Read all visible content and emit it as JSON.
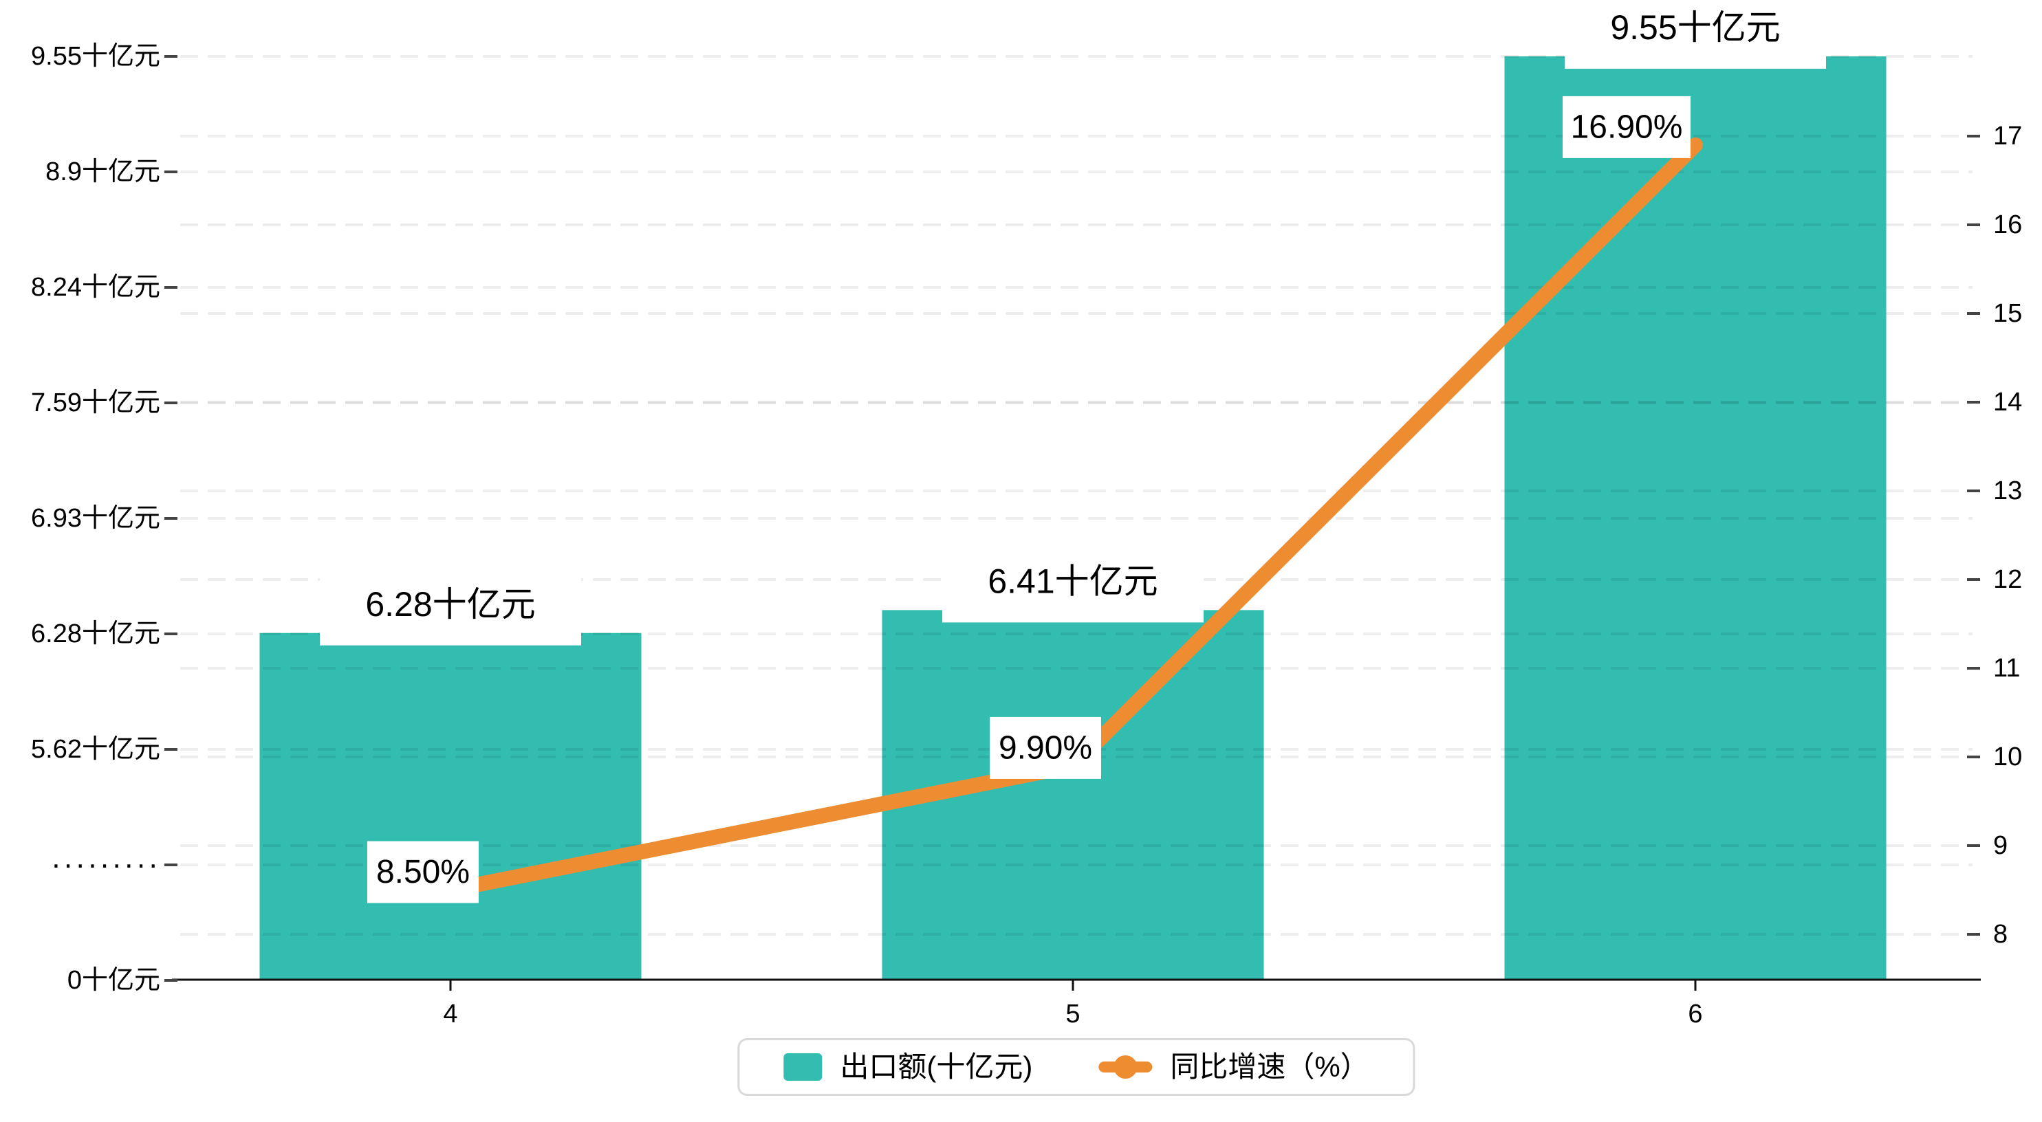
{
  "legend": {
    "items": [
      {
        "label": "出口额(十亿元)",
        "marker": "bar-swatch",
        "color": "#32bdb0"
      },
      {
        "label": "同比增速（%）",
        "marker": "line-dot-swatch",
        "color": "#ee8c31"
      }
    ]
  },
  "chart_data": {
    "type": "bar",
    "subtype": "dual-axis bar + line",
    "categories": [
      "4",
      "5",
      "6"
    ],
    "series": [
      {
        "name": "出口额(十亿元)",
        "type": "bar",
        "axis": "left",
        "values": [
          6.28,
          6.41,
          9.55
        ],
        "data_labels": [
          "6.28十亿元",
          "6.41十亿元",
          "9.55十亿元"
        ],
        "color": "#32bdb0"
      },
      {
        "name": "同比增速（%）",
        "type": "line",
        "axis": "right",
        "values": [
          8.5,
          9.9,
          16.9
        ],
        "data_labels": [
          "8.50%",
          "9.90%",
          "16.90%"
        ],
        "color": "#ee8c31"
      }
    ],
    "left_axis": {
      "title": "",
      "broken_axis": true,
      "tick_labels_top_to_bottom": [
        "9.55十亿元",
        "8.9十亿元",
        "8.24十亿元",
        "7.59十亿元",
        "6.93十亿元",
        "6.28十亿元",
        "5.62十亿元",
        "·········",
        "0十亿元"
      ],
      "tick_values_top_to_bottom": [
        9.55,
        8.9,
        8.24,
        7.59,
        6.93,
        6.28,
        5.62,
        null,
        0
      ]
    },
    "right_axis": {
      "min": 8,
      "max": 17,
      "step": 1,
      "tick_labels_bottom_to_top": [
        "8",
        "9",
        "10",
        "11",
        "12",
        "13",
        "14",
        "15",
        "16",
        "17"
      ]
    },
    "grid": "horizontal dashed gridlines for both axes",
    "legend_position": "bottom-center",
    "colors": {
      "bar": "#32bdb0",
      "line": "#ee8c31",
      "label_box_bg": "#ffffff",
      "text": "#000000",
      "axis_line": "#111111",
      "gridline": "rgba(0,0,0,0.07)"
    }
  }
}
